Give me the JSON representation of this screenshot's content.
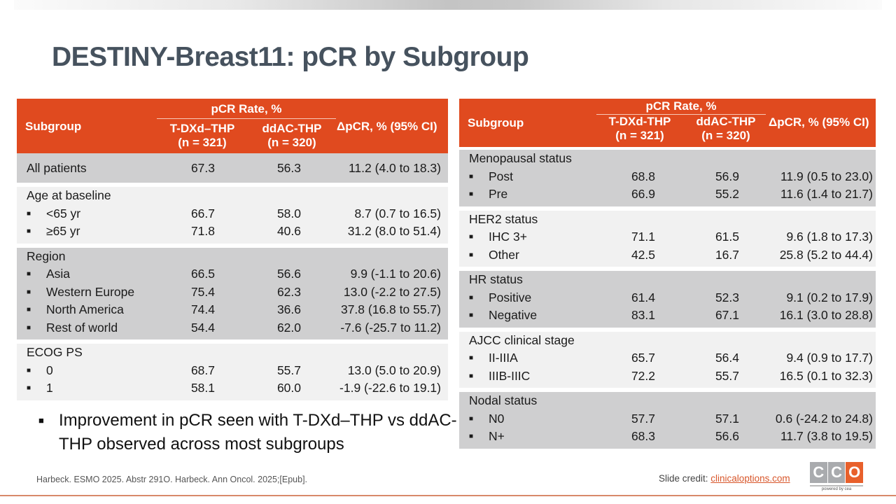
{
  "title": "DESTINY-Breast11: pCR by Subgroup",
  "table_headers": {
    "subgroup": "Subgroup",
    "rate": "pCR Rate, %",
    "delta": "ΔpCR, % (95% CI)"
  },
  "left_table": {
    "col1": [
      "T-DXd–THP",
      "(n = 321)"
    ],
    "col2": [
      "ddAC-THP",
      "(n = 320)"
    ],
    "groups": [
      {
        "label": "All patients",
        "shade": "dark",
        "values": [
          "67.3",
          "56.3",
          "11.2 (4.0 to 18.3)"
        ],
        "rows": []
      },
      {
        "label": "Age at baseline",
        "shade": "light",
        "rows": [
          {
            "label": "<65 yr",
            "values": [
              "66.7",
              "58.0",
              "8.7 (0.7 to 16.5)"
            ]
          },
          {
            "label": "≥65 yr",
            "values": [
              "71.8",
              "40.6",
              "31.2 (8.0 to 51.4)"
            ]
          }
        ]
      },
      {
        "label": "Region",
        "shade": "dark",
        "rows": [
          {
            "label": "Asia",
            "values": [
              "66.5",
              "56.6",
              "9.9 (-1.1 to 20.6)"
            ]
          },
          {
            "label": "Western Europe",
            "values": [
              "75.4",
              "62.3",
              "13.0 (-2.2 to 27.5)"
            ]
          },
          {
            "label": "North America",
            "values": [
              "74.4",
              "36.6",
              "37.8 (16.8 to 55.7)"
            ]
          },
          {
            "label": "Rest of world",
            "values": [
              "54.4",
              "62.0",
              "-7.6 (-25.7 to 11.2)"
            ]
          }
        ]
      },
      {
        "label": "ECOG PS",
        "shade": "light",
        "rows": [
          {
            "label": "0",
            "values": [
              "68.7",
              "55.7",
              "13.0 (5.0 to 20.9)"
            ]
          },
          {
            "label": "1",
            "values": [
              "58.1",
              "60.0",
              "-1.9 (-22.6 to 19.1)"
            ]
          }
        ]
      }
    ]
  },
  "right_table": {
    "col1": [
      "T-DXd-THP",
      "(n = 321)"
    ],
    "col2": [
      "ddAC-THP",
      "(n = 320)"
    ],
    "groups": [
      {
        "label": "Menopausal status",
        "shade": "dark",
        "rows": [
          {
            "label": "Post",
            "values": [
              "68.8",
              "56.9",
              "11.9 (0.5 to 23.0)"
            ]
          },
          {
            "label": "Pre",
            "values": [
              "66.9",
              "55.2",
              "11.6 (1.4 to 21.7)"
            ]
          }
        ]
      },
      {
        "label": "HER2 status",
        "shade": "light",
        "rows": [
          {
            "label": "IHC 3+",
            "values": [
              "71.1",
              "61.5",
              "9.6 (1.8 to 17.3)"
            ]
          },
          {
            "label": "Other",
            "values": [
              "42.5",
              "16.7",
              "25.8 (5.2 to 44.4)"
            ]
          }
        ]
      },
      {
        "label": "HR status",
        "shade": "dark",
        "rows": [
          {
            "label": "Positive",
            "values": [
              "61.4",
              "52.3",
              "9.1 (0.2 to 17.9)"
            ]
          },
          {
            "label": "Negative",
            "values": [
              "83.1",
              "67.1",
              "16.1 (3.0 to 28.8)"
            ]
          }
        ]
      },
      {
        "label": "AJCC clinical stage",
        "shade": "light",
        "rows": [
          {
            "label": "II-IIIA",
            "values": [
              "65.7",
              "56.4",
              "9.4 (0.9 to 17.7)"
            ]
          },
          {
            "label": "IIIB-IIIC",
            "values": [
              "72.2",
              "55.7",
              "16.5 (0.1 to 32.3)"
            ]
          }
        ]
      },
      {
        "label": "Nodal status",
        "shade": "dark",
        "rows": [
          {
            "label": "N0",
            "values": [
              "57.7",
              "57.1",
              "0.6 (-24.2 to 24.8)"
            ]
          },
          {
            "label": "N+",
            "values": [
              "68.3",
              "56.6",
              "11.7 (3.8 to 19.5)"
            ]
          }
        ]
      }
    ]
  },
  "bullet_note": "Improvement in pCR seen with T-DXd–THP vs ddAC-THP observed across most subgroups",
  "citation": "Harbeck. ESMO 2025. Abstr 291O. Harbeck. Ann Oncol. 2025;[Epub].",
  "credit": {
    "prefix": "Slide credit: ",
    "link": "clinicaloptions.com"
  },
  "logo": {
    "letters": [
      "C",
      "C",
      "O"
    ],
    "tagline": "powered by cea"
  },
  "colors": {
    "header": "#e04a1f",
    "dark_row": "#cfcfd0",
    "light_row": "#f1f1f1",
    "title": "#46525e",
    "accent": "#e8602b"
  }
}
